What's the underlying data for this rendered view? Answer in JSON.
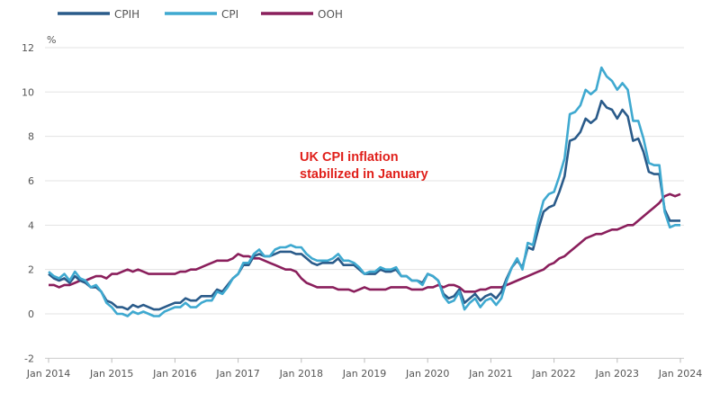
{
  "chart_data": {
    "type": "line",
    "title": "",
    "ylabel": "%",
    "xlabel": "",
    "ylim": [
      -2,
      12
    ],
    "yticks": [
      -2,
      0,
      2,
      4,
      6,
      8,
      10,
      12
    ],
    "xticks": [
      "Jan 2014",
      "Jan 2015",
      "Jan 2016",
      "Jan 2017",
      "Jan 2018",
      "Jan 2019",
      "Jan 2020",
      "Jan 2021",
      "Jan 2022",
      "Jan 2023",
      "Jan 2024"
    ],
    "x_start": "Jan 2014",
    "x_end": "Jan 2024",
    "frequency": "monthly",
    "grid": "horizontal",
    "legend_placement": "top",
    "annotation": [
      "UK CPI inflation",
      "stabilized in January"
    ],
    "annotation_color": "#e0201b",
    "series": [
      {
        "name": "CPIH",
        "color": "#2a5b8a",
        "values": [
          1.8,
          1.6,
          1.5,
          1.6,
          1.4,
          1.7,
          1.5,
          1.4,
          1.2,
          1.2,
          1.0,
          0.6,
          0.5,
          0.3,
          0.3,
          0.2,
          0.4,
          0.3,
          0.4,
          0.3,
          0.2,
          0.2,
          0.3,
          0.4,
          0.5,
          0.5,
          0.7,
          0.6,
          0.6,
          0.8,
          0.8,
          0.8,
          1.1,
          1.0,
          1.3,
          1.6,
          1.8,
          2.2,
          2.2,
          2.6,
          2.7,
          2.6,
          2.6,
          2.7,
          2.8,
          2.8,
          2.8,
          2.7,
          2.7,
          2.5,
          2.3,
          2.2,
          2.3,
          2.3,
          2.3,
          2.5,
          2.2,
          2.2,
          2.2,
          2.0,
          1.8,
          1.8,
          1.8,
          2.0,
          1.9,
          1.9,
          2.0,
          1.7,
          1.7,
          1.5,
          1.5,
          1.4,
          1.8,
          1.7,
          1.5,
          0.9,
          0.7,
          0.8,
          1.1,
          0.5,
          0.7,
          0.9,
          0.6,
          0.8,
          0.9,
          0.7,
          1.0,
          1.6,
          2.1,
          2.4,
          2.1,
          3.0,
          2.9,
          3.8,
          4.6,
          4.8,
          4.9,
          5.5,
          6.2,
          7.8,
          7.9,
          8.2,
          8.8,
          8.6,
          8.8,
          9.6,
          9.3,
          9.2,
          8.8,
          9.2,
          8.9,
          7.8,
          7.9,
          7.3,
          6.4,
          6.3,
          6.3,
          4.7,
          4.2,
          4.2,
          4.2
        ]
      },
      {
        "name": "CPI",
        "color": "#3fa9d0",
        "values": [
          1.9,
          1.7,
          1.6,
          1.8,
          1.5,
          1.9,
          1.6,
          1.5,
          1.2,
          1.3,
          1.0,
          0.5,
          0.3,
          0.0,
          0.0,
          -0.1,
          0.1,
          0.0,
          0.1,
          0.0,
          -0.1,
          -0.1,
          0.1,
          0.2,
          0.3,
          0.3,
          0.5,
          0.3,
          0.3,
          0.5,
          0.6,
          0.6,
          1.0,
          0.9,
          1.2,
          1.6,
          1.8,
          2.3,
          2.3,
          2.7,
          2.9,
          2.6,
          2.6,
          2.9,
          3.0,
          3.0,
          3.1,
          3.0,
          3.0,
          2.7,
          2.5,
          2.4,
          2.4,
          2.4,
          2.5,
          2.7,
          2.4,
          2.4,
          2.3,
          2.1,
          1.8,
          1.9,
          1.9,
          2.1,
          2.0,
          2.0,
          2.1,
          1.7,
          1.7,
          1.5,
          1.5,
          1.3,
          1.8,
          1.7,
          1.5,
          0.8,
          0.5,
          0.6,
          1.0,
          0.2,
          0.5,
          0.7,
          0.3,
          0.6,
          0.7,
          0.4,
          0.7,
          1.5,
          2.1,
          2.5,
          2.0,
          3.2,
          3.1,
          4.2,
          5.1,
          5.4,
          5.5,
          6.2,
          7.0,
          9.0,
          9.1,
          9.4,
          10.1,
          9.9,
          10.1,
          11.1,
          10.7,
          10.5,
          10.1,
          10.4,
          10.1,
          8.7,
          8.7,
          7.9,
          6.8,
          6.7,
          6.7,
          4.6,
          3.9,
          4.0,
          4.0
        ]
      },
      {
        "name": "OOH",
        "color": "#8a1f5c",
        "values": [
          1.3,
          1.3,
          1.2,
          1.3,
          1.3,
          1.4,
          1.5,
          1.5,
          1.6,
          1.7,
          1.7,
          1.6,
          1.8,
          1.8,
          1.9,
          2.0,
          1.9,
          2.0,
          1.9,
          1.8,
          1.8,
          1.8,
          1.8,
          1.8,
          1.8,
          1.9,
          1.9,
          2.0,
          2.0,
          2.1,
          2.2,
          2.3,
          2.4,
          2.4,
          2.4,
          2.5,
          2.7,
          2.6,
          2.6,
          2.5,
          2.5,
          2.4,
          2.3,
          2.2,
          2.1,
          2.0,
          2.0,
          1.9,
          1.6,
          1.4,
          1.3,
          1.2,
          1.2,
          1.2,
          1.2,
          1.1,
          1.1,
          1.1,
          1.0,
          1.1,
          1.2,
          1.1,
          1.1,
          1.1,
          1.1,
          1.2,
          1.2,
          1.2,
          1.2,
          1.1,
          1.1,
          1.1,
          1.2,
          1.2,
          1.3,
          1.2,
          1.3,
          1.3,
          1.2,
          1.0,
          1.0,
          1.0,
          1.1,
          1.1,
          1.2,
          1.2,
          1.2,
          1.3,
          1.4,
          1.5,
          1.6,
          1.7,
          1.8,
          1.9,
          2.0,
          2.2,
          2.3,
          2.5,
          2.6,
          2.8,
          3.0,
          3.2,
          3.4,
          3.5,
          3.6,
          3.6,
          3.7,
          3.8,
          3.8,
          3.9,
          4.0,
          4.0,
          4.2,
          4.4,
          4.6,
          4.8,
          5.0,
          5.3,
          5.4,
          5.3,
          5.4
        ]
      }
    ]
  }
}
